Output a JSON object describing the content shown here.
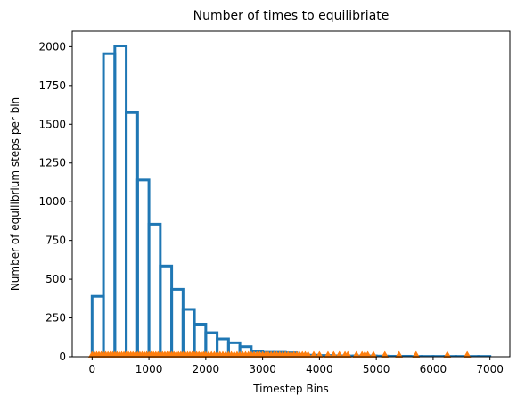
{
  "chart_data": {
    "type": "histogram",
    "title": "Number of times to equilibriate",
    "xlabel": "Timestep Bins",
    "ylabel": "Number of equilibrium steps per bin",
    "xlim": [
      -350,
      7350
    ],
    "ylim": [
      0,
      2100
    ],
    "xticks": [
      0,
      1000,
      2000,
      3000,
      4000,
      5000,
      6000,
      7000
    ],
    "yticks": [
      0,
      250,
      500,
      750,
      1000,
      1250,
      1500,
      1750,
      2000
    ],
    "bin_edges": [
      0,
      200,
      400,
      600,
      800,
      1000,
      1200,
      1400,
      1600,
      1800,
      2000,
      2200,
      2400,
      2600,
      2800,
      3000,
      3200,
      3400,
      3600,
      3800,
      4000,
      4200,
      4400,
      4600,
      4800,
      5000,
      5200,
      5400,
      5600,
      5800,
      6000,
      6200,
      6400,
      6600,
      6800,
      7000
    ],
    "counts": [
      390,
      1955,
      2005,
      1575,
      1140,
      855,
      585,
      435,
      305,
      210,
      155,
      115,
      90,
      65,
      35,
      28,
      28,
      25,
      15,
      10,
      8,
      6,
      5,
      5,
      5,
      4,
      3,
      3,
      2,
      2,
      2,
      2,
      2,
      2,
      2
    ],
    "series": [
      {
        "style": "step-outline",
        "color": "#1f77b4"
      },
      {
        "style": "markers",
        "color": "#ff7f0e",
        "marker": "triangle-up",
        "x": [
          0,
          40,
          80,
          120,
          160,
          200,
          240,
          280,
          320,
          360,
          400,
          440,
          480,
          520,
          560,
          600,
          640,
          680,
          720,
          760,
          800,
          840,
          880,
          920,
          960,
          1000,
          1040,
          1080,
          1120,
          1160,
          1200,
          1240,
          1280,
          1320,
          1360,
          1400,
          1440,
          1480,
          1520,
          1560,
          1600,
          1640,
          1680,
          1720,
          1760,
          1800,
          1840,
          1880,
          1920,
          1960,
          2000,
          2050,
          2100,
          2150,
          2200,
          2250,
          2300,
          2350,
          2400,
          2450,
          2500,
          2550,
          2600,
          2650,
          2700,
          2750,
          2800,
          2850,
          2900,
          2950,
          3000,
          3050,
          3100,
          3150,
          3200,
          3250,
          3300,
          3350,
          3400,
          3450,
          3500,
          3550,
          3600,
          3650,
          3700,
          3750,
          3800,
          3900,
          4000,
          4150,
          4250,
          4350,
          4450,
          4500,
          4650,
          4750,
          4800,
          4850,
          4950,
          5150,
          5400,
          5700,
          6250,
          6600
        ],
        "y": [
          12,
          12,
          12,
          12,
          12,
          12,
          12,
          12,
          12,
          12,
          12,
          12,
          12,
          12,
          12,
          12,
          12,
          12,
          12,
          12,
          12,
          12,
          12,
          12,
          12,
          12,
          12,
          12,
          12,
          12,
          12,
          12,
          12,
          12,
          12,
          12,
          12,
          12,
          12,
          12,
          12,
          12,
          12,
          12,
          12,
          12,
          12,
          12,
          12,
          12,
          12,
          12,
          12,
          12,
          12,
          12,
          12,
          12,
          12,
          12,
          12,
          12,
          12,
          12,
          12,
          12,
          12,
          12,
          12,
          12,
          12,
          12,
          12,
          12,
          12,
          12,
          12,
          12,
          12,
          12,
          12,
          12,
          12,
          12,
          12,
          12,
          12,
          12,
          12,
          12,
          12,
          12,
          12,
          12,
          12,
          12,
          12,
          12,
          12,
          12,
          12,
          12,
          12,
          12
        ]
      }
    ],
    "grid": false,
    "legend": "none"
  }
}
